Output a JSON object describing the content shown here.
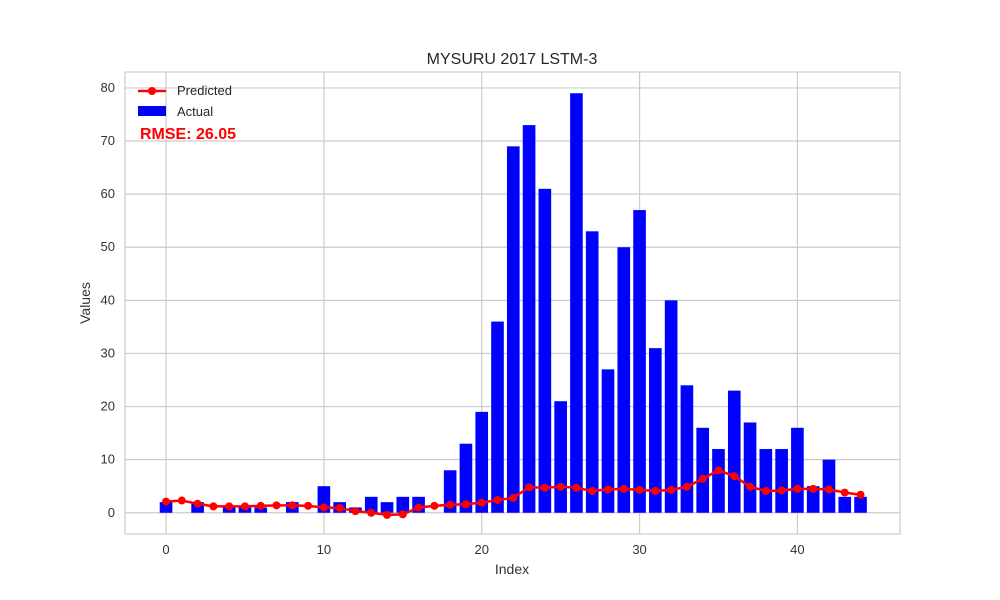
{
  "chart_data": {
    "type": "bar",
    "title": "MYSURU 2017 LSTM-3",
    "xlabel": "Index",
    "ylabel": "Values",
    "xlim": [
      -2.6,
      46.5
    ],
    "ylim": [
      -4.0,
      83.0
    ],
    "xticks": [
      0,
      10,
      20,
      30,
      40
    ],
    "yticks": [
      0,
      10,
      20,
      30,
      40,
      50,
      60,
      70,
      80
    ],
    "grid": true,
    "legend_position": "top-left",
    "annotation": {
      "text": "RMSE: 26.05",
      "color": "#ff0000"
    },
    "series": [
      {
        "name": "Predicted",
        "kind": "line",
        "color": "#ff0000",
        "x": [
          0,
          1,
          2,
          3,
          4,
          5,
          6,
          7,
          8,
          9,
          10,
          11,
          12,
          13,
          14,
          15,
          16,
          17,
          18,
          19,
          20,
          21,
          22,
          23,
          24,
          25,
          26,
          27,
          28,
          29,
          30,
          31,
          32,
          33,
          34,
          35,
          36,
          37,
          38,
          39,
          40,
          41,
          42,
          43,
          44
        ],
        "values": [
          2.1,
          2.3,
          1.7,
          1.2,
          1.2,
          1.2,
          1.3,
          1.4,
          1.4,
          1.3,
          1.0,
          0.9,
          0.3,
          0.0,
          -0.4,
          -0.3,
          1.0,
          1.3,
          1.5,
          1.6,
          1.9,
          2.4,
          2.8,
          4.8,
          4.7,
          4.9,
          4.7,
          4.1,
          4.4,
          4.5,
          4.3,
          4.1,
          4.3,
          4.9,
          6.4,
          8.0,
          6.9,
          4.9,
          4.1,
          4.2,
          4.5,
          4.5,
          4.4,
          3.8,
          3.4
        ]
      },
      {
        "name": "Actual",
        "kind": "bar",
        "color": "#0000ff",
        "x": [
          0,
          1,
          2,
          3,
          4,
          5,
          6,
          7,
          8,
          9,
          10,
          11,
          12,
          13,
          14,
          15,
          16,
          17,
          18,
          19,
          20,
          21,
          22,
          23,
          24,
          25,
          26,
          27,
          28,
          29,
          30,
          31,
          32,
          33,
          34,
          35,
          36,
          37,
          38,
          39,
          40,
          41,
          42,
          43,
          44
        ],
        "values": [
          2,
          0,
          2,
          0,
          1,
          1,
          1,
          0,
          2,
          0,
          5,
          2,
          1,
          3,
          2,
          3,
          3,
          0,
          8,
          13,
          19,
          36,
          69,
          73,
          61,
          21,
          79,
          53,
          27,
          50,
          57,
          31,
          40,
          24,
          16,
          12,
          23,
          17,
          12,
          12,
          16,
          5,
          10,
          3,
          3
        ]
      }
    ]
  }
}
